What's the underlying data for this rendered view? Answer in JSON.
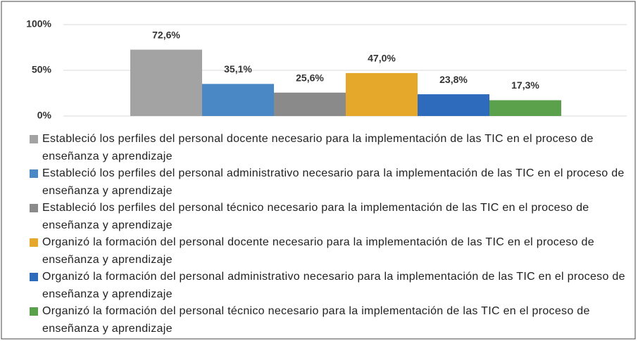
{
  "chart_data": {
    "type": "bar",
    "categories": [
      null
    ],
    "series": [
      {
        "name": "Estableció los perfiles del personal docente necesario para la implementación de las TIC en el proceso de enseñanza y aprendizaje",
        "color": "#a3a3a3",
        "values": [
          72.6
        ],
        "value_labels": [
          "72,6%"
        ]
      },
      {
        "name": "Estableció los perfiles del personal administrativo necesario para la implementación de las TIC en el proceso de enseñanza y aprendizaje",
        "color": "#4a87c5",
        "values": [
          35.1
        ],
        "value_labels": [
          "35,1%"
        ]
      },
      {
        "name": "Estableció los perfiles del personal técnico necesario para la implementación de las TIC en el proceso de enseñanza y aprendizaje",
        "color": "#8a8a8a",
        "values": [
          25.6
        ],
        "value_labels": [
          "25,6%"
        ]
      },
      {
        "name": "Organizó la formación del personal docente necesario para la implementación de las TIC en el proceso de enseñanza y aprendizaje",
        "color": "#e5a82a",
        "values": [
          47.0
        ],
        "value_labels": [
          "47,0%"
        ]
      },
      {
        "name": "Organizó la formación del personal administrativo necesario para la implementación de las TIC en el proceso de enseñanza y aprendizaje",
        "color": "#2f6bbd",
        "values": [
          23.8
        ],
        "value_labels": [
          "23,8%"
        ]
      },
      {
        "name": "Organizó la formación del personal técnico necesario para la implementación de las TIC en el proceso de enseñanza y aprendizaje",
        "color": "#5ba04a",
        "values": [
          17.3
        ],
        "value_labels": [
          "17,3%"
        ]
      }
    ],
    "ylim": [
      0,
      100
    ],
    "yticks": [
      {
        "value": 0,
        "label": "0%"
      },
      {
        "value": 50,
        "label": "50%"
      },
      {
        "value": 100,
        "label": "100%"
      }
    ],
    "grid": true,
    "legend": "bottom"
  }
}
